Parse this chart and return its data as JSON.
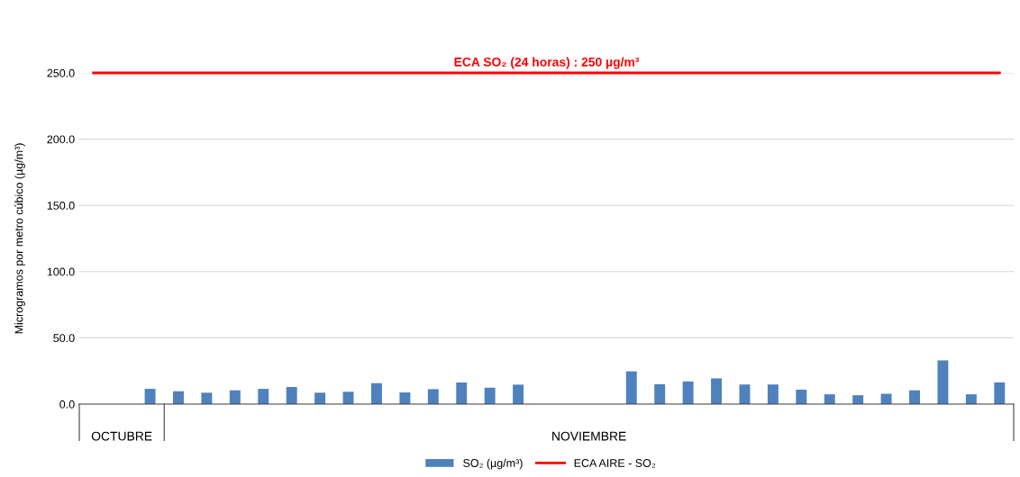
{
  "chart_data": {
    "type": "bar",
    "ylabel": "Microgramos por metro cúbico (µg/m³)",
    "categories": [
      null,
      null,
      null,
      null,
      null,
      null,
      null,
      null,
      null,
      null,
      null,
      null,
      null,
      null,
      null,
      null,
      null,
      null,
      null,
      null,
      null,
      null,
      null,
      null,
      null,
      null,
      null,
      null,
      null,
      null,
      null,
      null,
      null
    ],
    "series": [
      {
        "name": "SO₂ (µg/m³)",
        "color": "#4f81bd",
        "values": [
          null,
          null,
          11.5,
          9.7,
          8.6,
          10.4,
          11.5,
          12.9,
          8.6,
          9.3,
          15.8,
          8.8,
          11.3,
          16.3,
          12.4,
          14.7,
          null,
          null,
          null,
          24.7,
          15.0,
          17.1,
          19.4,
          14.8,
          14.8,
          10.9,
          7.4,
          6.7,
          7.8,
          10.4,
          33.0,
          7.4,
          16.4
        ]
      },
      {
        "name": "ECA AIRE - SO₂",
        "type": "line",
        "color": "#ff0000",
        "values": [
          250,
          250,
          250,
          250,
          250,
          250,
          250,
          250,
          250,
          250,
          250,
          250,
          250,
          250,
          250,
          250,
          250,
          250,
          250,
          250,
          250,
          250,
          250,
          250,
          250,
          250,
          250,
          250,
          250,
          250,
          250,
          250,
          250
        ]
      }
    ],
    "annotations": [
      {
        "text": "ECA SO₂ (24 horas) : 250 µg/m³",
        "y": 250
      },
      "OCTUBRE",
      "NOVIEMBRE"
    ],
    "ylim": [
      0,
      250
    ],
    "yticks": [
      {
        "value": 0,
        "label": "0.0"
      },
      {
        "value": 50,
        "label": "50.0"
      },
      {
        "value": 100,
        "label": "100.0"
      },
      {
        "value": 150,
        "label": "150.0"
      },
      {
        "value": 200,
        "label": "200.0"
      },
      {
        "value": 250,
        "label": "250.0"
      }
    ],
    "grid": "y",
    "legend": "bottom",
    "marker": "none",
    "line_style": "solid"
  }
}
